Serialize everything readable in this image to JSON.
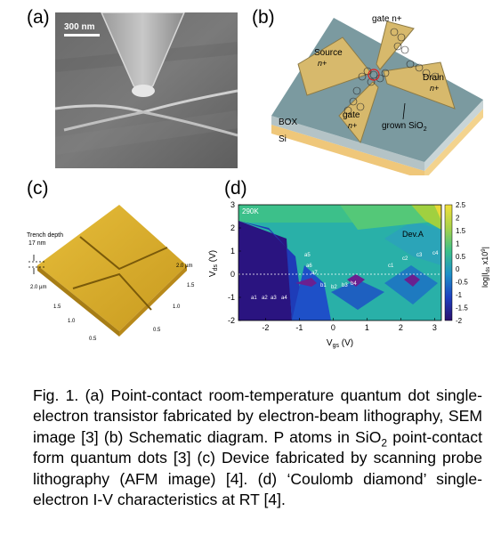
{
  "panel_a": {
    "label": "(a)",
    "scale_bar": "300 nm"
  },
  "panel_b": {
    "label": "(b)",
    "gate_top": "gate n+",
    "source": "Source",
    "source_doping": "n+",
    "drain": "Drain",
    "drain_doping": "n+",
    "gate_bottom": "gate",
    "gate_bottom_doping": "n+",
    "box": "BOX",
    "si": "Si",
    "grown_oxide": "grown SiO",
    "grown_oxide_sub": "2",
    "colors": {
      "top": "#7b9aa0",
      "electrode": "#d7b96c",
      "side": "#efc77a",
      "box": "#b4c3c6"
    }
  },
  "panel_c": {
    "label": "(c)",
    "trench_label": "Trench depth",
    "trench_value": "17 nm",
    "axis_unit_left": "2.0 µm",
    "axis_unit_right": "2.0 µm",
    "ticks_left": [
      "1.5",
      "1.0",
      "0.5"
    ],
    "ticks_right": [
      "1.5",
      "1.0",
      "0.5"
    ]
  },
  "panel_d": {
    "label": "(d)",
    "temperature": "290K",
    "device": "Dev.A",
    "peak_labels": [
      "a1",
      "a2",
      "a3",
      "a4",
      "a5",
      "a6",
      "a7",
      "b1",
      "b2",
      "b3",
      "b4",
      "c1",
      "c2",
      "c3",
      "c4"
    ],
    "colorbar_ticks": [
      "2.5",
      "2",
      "1.5",
      "1",
      "0.5",
      "0",
      "-0.5",
      "-1",
      "-1.5",
      "-2"
    ],
    "colorbar_label": "log|I",
    "colorbar_label_sub": "ds",
    "colorbar_label_tail": " x10",
    "colorbar_label_sup": "9",
    "colorbar_label_end": "|"
  },
  "chart_data": {
    "type": "heatmap",
    "title": "",
    "xlabel": "V",
    "xlabel_sub": "gs",
    "xlabel_unit": " (V)",
    "ylabel": "V",
    "ylabel_sub": "ds",
    "ylabel_unit": " (V)",
    "xlim": [
      -2.8,
      3.2
    ],
    "ylim": [
      -2,
      3
    ],
    "x_ticks": [
      -2,
      -1,
      0,
      1,
      2,
      3
    ],
    "y_ticks": [
      -2,
      -1,
      0,
      1,
      2,
      3
    ],
    "colorbar_range": [
      -2,
      2.5
    ],
    "legend": "right colorbar"
  },
  "caption": {
    "part1": "Fig. 1. (a) Point-contact room-temperature quantum dot single-electron transistor fabricated by electron-beam lithography, SEM image [3] (b) Schematic diagram. P atoms in SiO",
    "sub1": "2",
    "part2": " point-contact form quantum dots [3] (c) Device fabricated by scanning probe lithography (AFM image) [4]. (d) ‘Coulomb diamond’ single-electron I-V characteristics at RT [4]."
  }
}
